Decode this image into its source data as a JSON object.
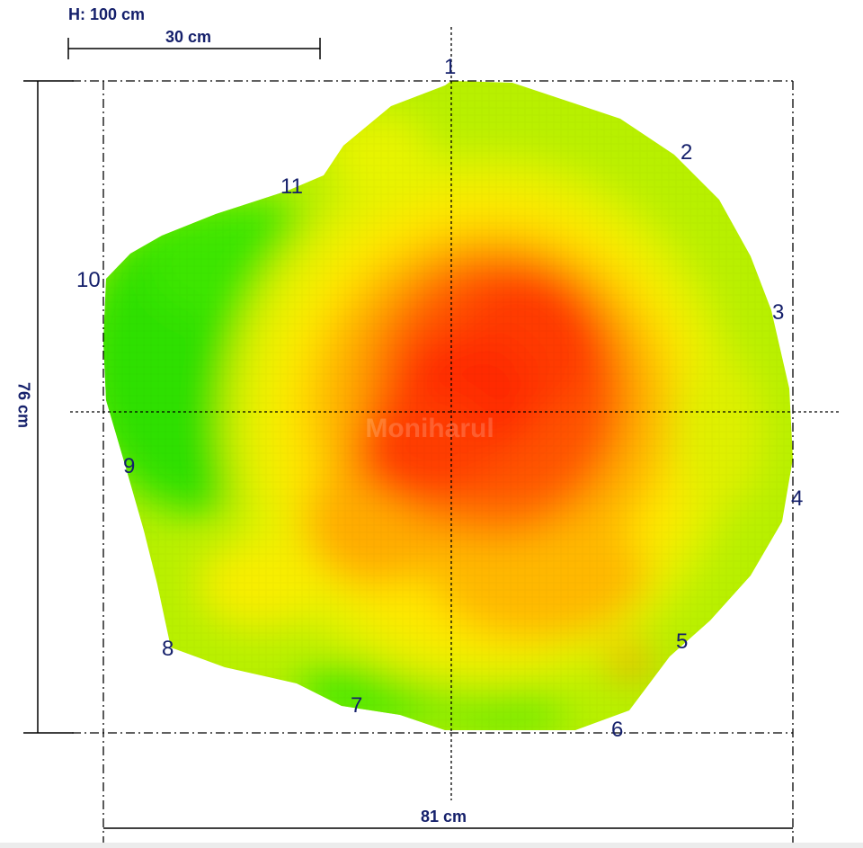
{
  "diagram": {
    "height_label": "H: 100 cm",
    "scale_label": "30 cm",
    "vertical_dimension": "76 cm",
    "horizontal_dimension": "81 cm",
    "watermark": "Moniharul",
    "points": [
      "1",
      "2",
      "3",
      "4",
      "5",
      "6",
      "7",
      "8",
      "9",
      "10",
      "11"
    ],
    "colors": {
      "line": "#000000",
      "label": "#15206b",
      "high": "#ff2a00",
      "mid": "#ffd800",
      "low": "#22e000"
    }
  }
}
